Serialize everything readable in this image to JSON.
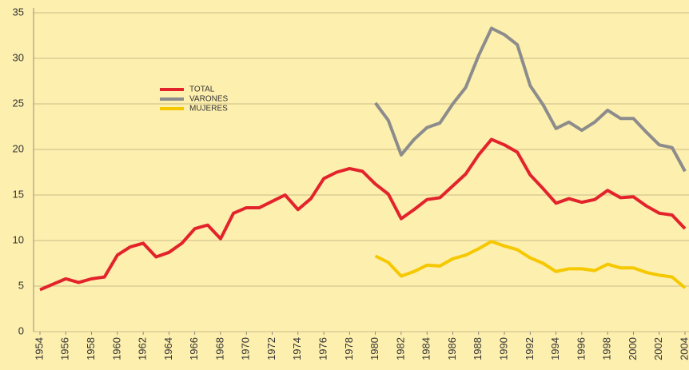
{
  "chart_data": {
    "type": "line",
    "x": [
      1954,
      1955,
      1956,
      1957,
      1958,
      1959,
      1960,
      1961,
      1962,
      1963,
      1964,
      1965,
      1966,
      1967,
      1968,
      1969,
      1970,
      1971,
      1972,
      1973,
      1974,
      1975,
      1976,
      1977,
      1978,
      1979,
      1980,
      1981,
      1982,
      1983,
      1984,
      1985,
      1986,
      1987,
      1988,
      1989,
      1990,
      1991,
      1992,
      1993,
      1994,
      1995,
      1996,
      1997,
      1998,
      1999,
      2000,
      2001,
      2002,
      2003,
      2004
    ],
    "series": [
      {
        "name": "TOTAL",
        "color": "#e3232b",
        "values": [
          4.6,
          5.2,
          5.8,
          5.4,
          5.8,
          6.0,
          8.4,
          9.3,
          9.7,
          8.2,
          8.7,
          9.7,
          11.3,
          11.7,
          10.2,
          13.0,
          13.6,
          13.6,
          14.3,
          15.0,
          13.4,
          14.6,
          16.8,
          17.5,
          17.9,
          17.6,
          16.2,
          15.1,
          12.4,
          13.4,
          14.5,
          14.7,
          16.0,
          17.3,
          19.4,
          21.1,
          20.5,
          19.7,
          17.2,
          15.7,
          14.1,
          14.6,
          14.2,
          14.5,
          15.5,
          14.7,
          14.8,
          13.8,
          13.0,
          12.8,
          11.3
        ]
      },
      {
        "name": "VARONES",
        "color": "#8c8c8c",
        "values": [
          null,
          null,
          null,
          null,
          null,
          null,
          null,
          null,
          null,
          null,
          null,
          null,
          null,
          null,
          null,
          null,
          null,
          null,
          null,
          null,
          null,
          null,
          null,
          null,
          null,
          null,
          25.1,
          23.2,
          19.4,
          21.1,
          22.4,
          22.9,
          25.0,
          26.8,
          30.3,
          33.3,
          32.6,
          31.5,
          27.0,
          24.9,
          22.3,
          23.0,
          22.1,
          23.0,
          24.3,
          23.4,
          23.4,
          21.9,
          20.5,
          20.2,
          17.6
        ]
      },
      {
        "name": "MUJERES",
        "color": "#f5c800",
        "values": [
          null,
          null,
          null,
          null,
          null,
          null,
          null,
          null,
          null,
          null,
          null,
          null,
          null,
          null,
          null,
          null,
          null,
          null,
          null,
          null,
          null,
          null,
          null,
          null,
          null,
          null,
          8.3,
          7.6,
          6.1,
          6.6,
          7.3,
          7.2,
          8.0,
          8.4,
          9.1,
          9.9,
          9.4,
          9.0,
          8.1,
          7.5,
          6.6,
          6.9,
          6.9,
          6.7,
          7.4,
          7.0,
          7.0,
          6.5,
          6.2,
          6.0,
          4.8
        ]
      }
    ],
    "xlim": [
      1954,
      2004
    ],
    "xticks": [
      1954,
      1956,
      1958,
      1960,
      1962,
      1964,
      1966,
      1968,
      1970,
      1972,
      1974,
      1976,
      1978,
      1980,
      1982,
      1984,
      1986,
      1988,
      1990,
      1992,
      1994,
      1996,
      1998,
      2000,
      2002,
      2004
    ],
    "ylim": [
      0,
      35
    ],
    "yticks": [
      0,
      5,
      10,
      15,
      20,
      25,
      30,
      35
    ],
    "grid": true,
    "legend": "upper left"
  }
}
